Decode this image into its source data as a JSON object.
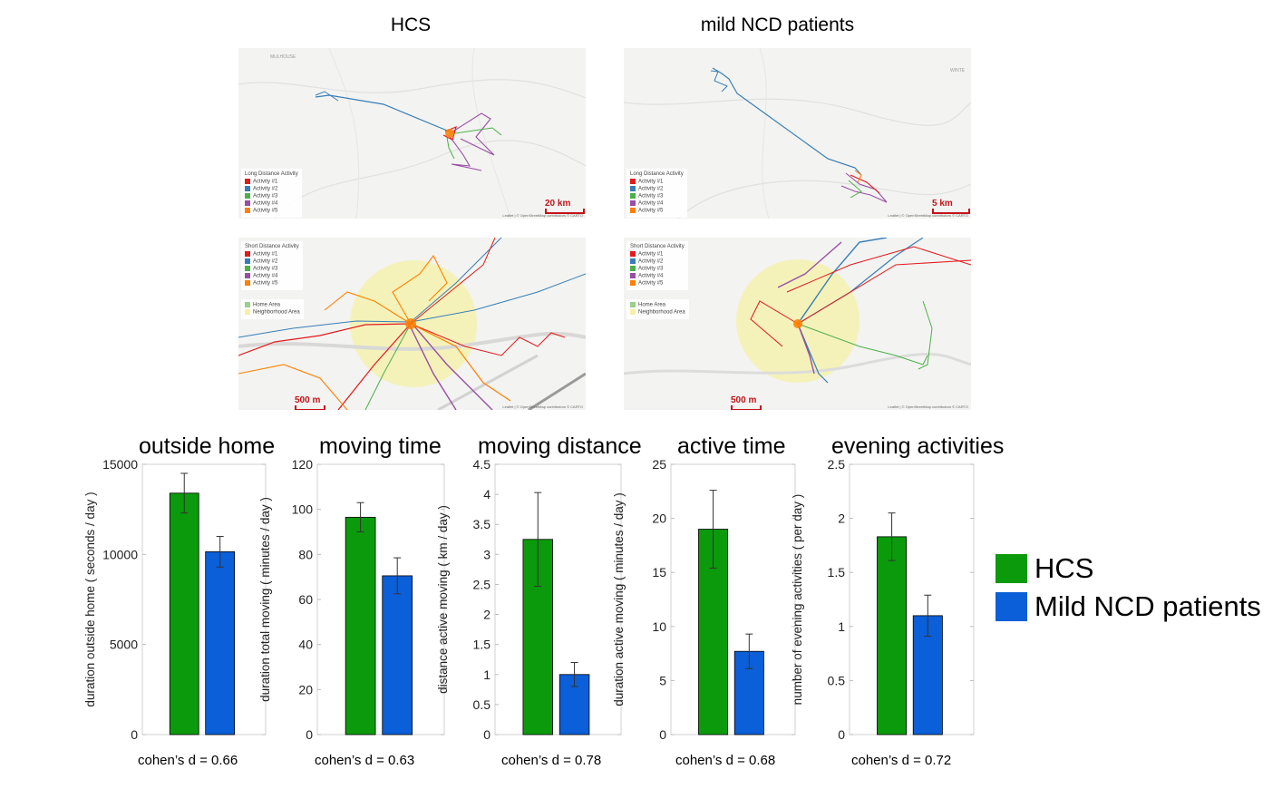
{
  "columns": [
    "HCS",
    "mild NCD patients"
  ],
  "maps": [
    {
      "legend_title": "Long Distance Activity",
      "legend_items": [
        "Activity #1",
        "Activity #2",
        "Activity #3",
        "Activity #4",
        "Activity #5"
      ],
      "legend_extra": [],
      "scale_label": "20 km",
      "attribution": "Leaflet | © OpenStreetMap contributors © CARTO",
      "place_labels": [
        "MULHOUSE"
      ]
    },
    {
      "legend_title": "Long Distance Activity",
      "legend_items": [
        "Activity #1",
        "Activity #2",
        "Activity #3",
        "Activity #4",
        "Activity #5"
      ],
      "legend_extra": [],
      "scale_label": "5 km",
      "attribution": "Leaflet | © OpenStreetMap contributors © CARTO",
      "place_labels": [
        "WINTE"
      ]
    },
    {
      "legend_title": "Short Distance Activity",
      "legend_items": [
        "Activity #1",
        "Activity #2",
        "Activity #3",
        "Activity #4",
        "Activity #5"
      ],
      "legend_extra": [
        "Home Area",
        "Neighborhood Area"
      ],
      "scale_label": "500 m",
      "attribution": "Leaflet | © OpenStreetMap contributors © CARTO",
      "place_labels": []
    },
    {
      "legend_title": "Short Distance Activity",
      "legend_items": [
        "Activity #1",
        "Activity #2",
        "Activity #3",
        "Activity #4",
        "Activity #5"
      ],
      "legend_extra": [
        "Home Area",
        "Neighborhood Area"
      ],
      "scale_label": "500 m",
      "attribution": "Leaflet | © OpenStreetMap contributors © CARTO",
      "place_labels": []
    }
  ],
  "activity_colors": [
    "#e41a1c",
    "#377eb8",
    "#4daf4a",
    "#984ea3",
    "#ff7f00"
  ],
  "home_area_color": "#9ccf8a",
  "neighborhood_color": "#f4f1a6",
  "colors": {
    "HCS": "#0b9a0b",
    "NCD": "#0b5fd8"
  },
  "legend": [
    "HCS",
    "Mild NCD patients"
  ],
  "chart_data": [
    {
      "type": "bar",
      "title": "outside home",
      "ylabel": "duration outside home ( seconds / day )",
      "ylim": [
        0,
        15000
      ],
      "yticks": [
        0,
        5000,
        10000,
        15000
      ],
      "ytick_labels": [
        "0",
        "5000",
        "10000",
        "15000"
      ],
      "series": [
        {
          "name": "HCS",
          "values": [
            13400
          ],
          "error": [
            1100
          ]
        },
        {
          "name": "Mild NCD patients",
          "values": [
            10150
          ],
          "error": [
            850
          ]
        }
      ],
      "annotation": "cohen’s d = 0.66"
    },
    {
      "type": "bar",
      "title": "moving time",
      "ylabel": "duration total moving ( minutes / day )",
      "ylim": [
        0,
        120
      ],
      "yticks": [
        0,
        20,
        40,
        60,
        80,
        100,
        120
      ],
      "ytick_labels": [
        "0",
        "20",
        "40",
        "60",
        "80",
        "100",
        "120"
      ],
      "series": [
        {
          "name": "HCS",
          "values": [
            96.5
          ],
          "error": [
            6.5
          ]
        },
        {
          "name": "Mild NCD patients",
          "values": [
            70.5
          ],
          "error": [
            8
          ]
        }
      ],
      "annotation": "cohen’s d = 0.63"
    },
    {
      "type": "bar",
      "title": "moving distance",
      "ylabel": "distance active moving ( km / day )",
      "ylim": [
        0,
        4.5
      ],
      "yticks": [
        0,
        0.5,
        1,
        1.5,
        2,
        2.5,
        3,
        3.5,
        4,
        4.5
      ],
      "ytick_labels": [
        "0",
        "0.5",
        "1",
        "1.5",
        "2",
        "2.5",
        "3",
        "3.5",
        "4",
        "4.5"
      ],
      "series": [
        {
          "name": "HCS",
          "values": [
            3.25
          ],
          "error": [
            0.78
          ]
        },
        {
          "name": "Mild NCD patients",
          "values": [
            1.0
          ],
          "error": [
            0.2
          ]
        }
      ],
      "annotation": "cohen’s d = 0.78"
    },
    {
      "type": "bar",
      "title": "active time",
      "ylabel": "duration active moving ( minutes / day )",
      "ylim": [
        0,
        25
      ],
      "yticks": [
        0,
        5,
        10,
        15,
        20,
        25
      ],
      "ytick_labels": [
        "0",
        "5",
        "10",
        "15",
        "20",
        "25"
      ],
      "series": [
        {
          "name": "HCS",
          "values": [
            19.0
          ],
          "error": [
            3.6
          ]
        },
        {
          "name": "Mild NCD patients",
          "values": [
            7.7
          ],
          "error": [
            1.6
          ]
        }
      ],
      "annotation": "cohen’s d = 0.68"
    },
    {
      "type": "bar",
      "title": "evening activities",
      "ylabel": "number of evening activities ( per day )",
      "ylim": [
        0,
        2.5
      ],
      "yticks": [
        0,
        0.5,
        1,
        1.5,
        2,
        2.5
      ],
      "ytick_labels": [
        "0",
        "0.5",
        "1",
        "1.5",
        "2",
        "2.5"
      ],
      "series": [
        {
          "name": "HCS",
          "values": [
            1.83
          ],
          "error": [
            0.22
          ]
        },
        {
          "name": "Mild NCD patients",
          "values": [
            1.1
          ],
          "error": [
            0.19
          ]
        }
      ],
      "annotation": "cohen’s d = 0.72"
    }
  ]
}
